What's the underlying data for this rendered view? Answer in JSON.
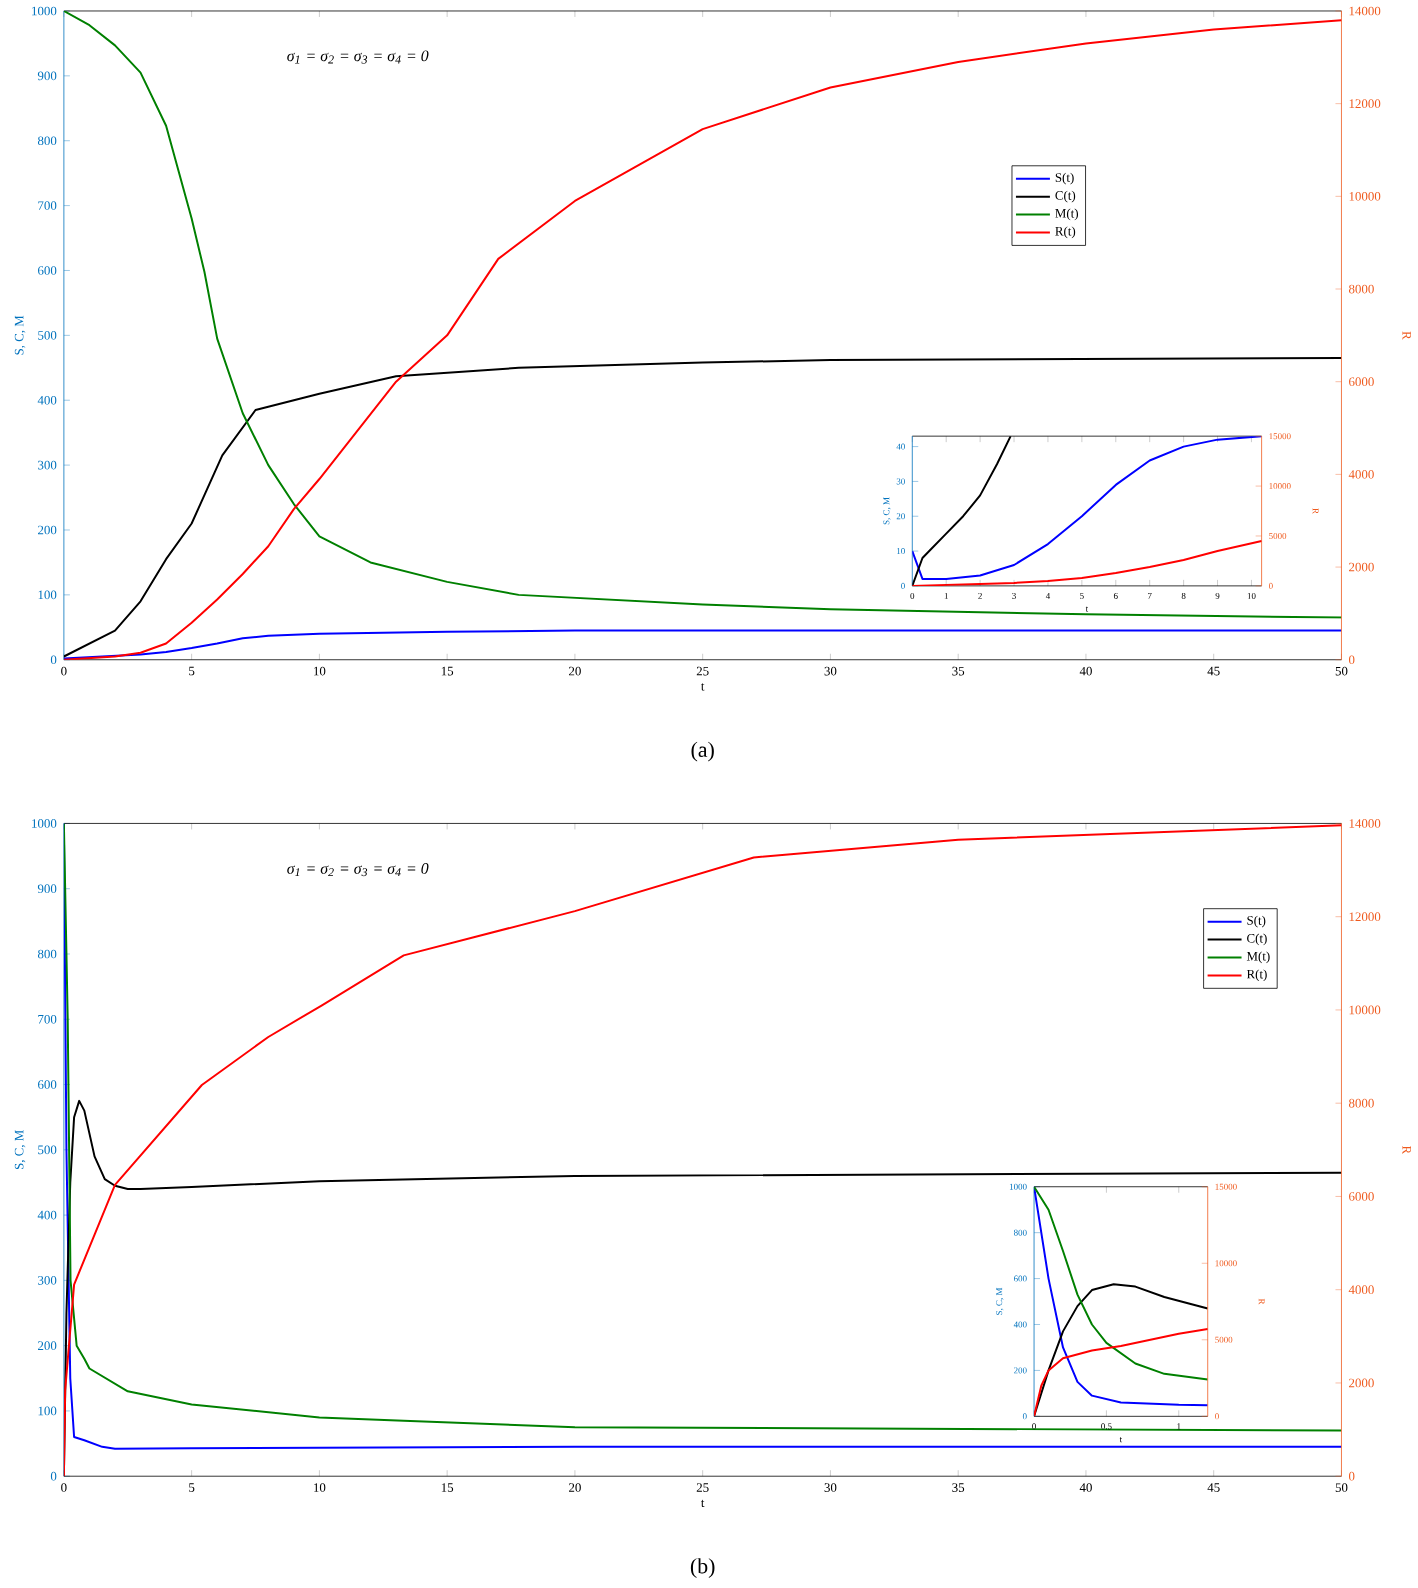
{
  "chart_data": [
    {
      "type": "line",
      "xlabel": "t",
      "ylabel": "S, C, M",
      "y2label": "R",
      "xlim": [
        0,
        50
      ],
      "xticks": [
        0,
        5,
        10,
        15,
        20,
        25,
        30,
        35,
        40,
        45,
        50
      ],
      "ylim": [
        0,
        1000
      ],
      "yticks": [
        0,
        100,
        200,
        300,
        400,
        500,
        600,
        700,
        800,
        900,
        1000
      ],
      "y2lim": [
        0,
        14000
      ],
      "y2ticks": [
        0,
        2000,
        4000,
        6000,
        8000,
        10000,
        12000,
        14000
      ],
      "legend": "right",
      "annotations": [
        "σ$_{1}$ = σ$_{2}$ = σ$_{3}$ =  σ$_{4}$ = 0",
        "(a)"
      ],
      "series": [
        {
          "name": "S(t)",
          "color": "#0000ff",
          "x": [
            0,
            3,
            4,
            5,
            6,
            7,
            8,
            10,
            15,
            20,
            30,
            50
          ],
          "values": [
            2,
            8,
            12,
            18,
            25,
            33,
            37,
            40,
            43,
            45,
            45,
            45
          ]
        },
        {
          "name": "C(t)",
          "color": "#000000",
          "x": [
            0,
            1,
            2,
            3,
            4,
            5,
            6.2,
            7.5,
            9,
            10,
            13,
            17.8,
            25,
            30,
            50
          ],
          "values": [
            5,
            25,
            45,
            90,
            155,
            210,
            315,
            385,
            400,
            410,
            437,
            450,
            458,
            462,
            465
          ]
        },
        {
          "name": "M(t)",
          "color": "#008000",
          "x": [
            0,
            1,
            2,
            3,
            4,
            5,
            5.5,
            6,
            7,
            8,
            9,
            10,
            12,
            15,
            17.8,
            25,
            30,
            40,
            50
          ],
          "values": [
            1000,
            978,
            947,
            905,
            823,
            680,
            598,
            495,
            380,
            300,
            240,
            190,
            150,
            120,
            100,
            85,
            78,
            70,
            65
          ]
        },
        {
          "name": "R(t)",
          "color": "#ff0000",
          "axis": "y2",
          "x": [
            0,
            2,
            3,
            4,
            5,
            6,
            7,
            8,
            9,
            10,
            11,
            12,
            13,
            15,
            17,
            20,
            25,
            30,
            35,
            40,
            45,
            50
          ],
          "values": [
            0,
            70,
            150,
            350,
            800,
            1300,
            1850,
            2450,
            3250,
            3900,
            4600,
            5300,
            6000,
            7000,
            8650,
            9900,
            11450,
            12350,
            12900,
            13300,
            13600,
            13800
          ]
        }
      ]
    },
    {
      "type": "line",
      "xlabel": "t",
      "ylabel": "S, C, M",
      "y2label": "R",
      "xlim": [
        0,
        10.3
      ],
      "xticks": [
        0,
        1,
        2,
        3,
        4,
        5,
        6,
        7,
        8,
        9,
        10
      ],
      "ylim": [
        0,
        43
      ],
      "yticks": [
        0,
        10,
        20,
        30,
        40
      ],
      "y2lim": [
        0,
        15000
      ],
      "y2ticks": [
        0,
        5000,
        10000,
        15000
      ],
      "series": [
        {
          "color": "#0000ff",
          "x": [
            0,
            0.3,
            1,
            2,
            3,
            4,
            5,
            6,
            7,
            8,
            9,
            10.3
          ],
          "values": [
            10,
            2,
            2,
            3,
            6,
            12,
            20,
            29,
            36,
            40,
            42,
            43
          ]
        },
        {
          "color": "#000000",
          "x": [
            0,
            0.3,
            0.5,
            1,
            1.5,
            2,
            2.5,
            2.9
          ],
          "values": [
            0,
            8,
            10,
            15,
            20,
            26,
            35,
            43
          ]
        },
        {
          "color": "#ff0000",
          "axis": "y2",
          "x": [
            0,
            1,
            2,
            3,
            4,
            5,
            6,
            7,
            8,
            9,
            10.3
          ],
          "values": [
            0,
            100,
            200,
            300,
            500,
            800,
            1300,
            1900,
            2600,
            3500,
            4500
          ]
        }
      ]
    },
    {
      "type": "line",
      "xlabel": "t",
      "ylabel": "S, C, M",
      "y2label": "R",
      "xlim": [
        0,
        50
      ],
      "xticks": [
        0,
        5,
        10,
        15,
        20,
        25,
        30,
        35,
        40,
        45,
        50
      ],
      "ylim": [
        0,
        1000
      ],
      "yticks": [
        0,
        100,
        200,
        300,
        400,
        500,
        600,
        700,
        800,
        900,
        1000
      ],
      "y2lim": [
        0,
        14000
      ],
      "y2ticks": [
        0,
        2000,
        4000,
        6000,
        8000,
        10000,
        12000,
        14000
      ],
      "legend": "top right",
      "annotations": [
        "σ$_{1}$ = σ$_{2}$ = σ$_{3}$ =  σ$_{4}$ = 0",
        "(b)"
      ],
      "series": [
        {
          "name": "S(t)",
          "color": "#0000ff",
          "x": [
            0,
            0.1,
            0.25,
            0.4,
            0.8,
            1.5,
            2,
            5,
            20,
            50
          ],
          "values": [
            1000,
            500,
            150,
            60,
            55,
            45,
            42,
            43,
            45,
            45
          ]
        },
        {
          "name": "C(t)",
          "color": "#000000",
          "x": [
            0,
            0.1,
            0.25,
            0.4,
            0.6,
            0.8,
            1.2,
            1.6,
            2,
            2.5,
            3,
            5,
            10,
            20,
            50
          ],
          "values": [
            0,
            250,
            450,
            550,
            575,
            560,
            490,
            455,
            445,
            440,
            440,
            443,
            452,
            460,
            465
          ]
        },
        {
          "name": "M(t)",
          "color": "#008000",
          "x": [
            0,
            0.15,
            0.26,
            0.5,
            0.8,
            1,
            2.5,
            5,
            10,
            13.3,
            20,
            50
          ],
          "values": [
            1000,
            700,
            300,
            200,
            180,
            165,
            130,
            110,
            90,
            85,
            75,
            70
          ]
        },
        {
          "name": "R(t)",
          "color": "#ff0000",
          "axis": "y2",
          "x": [
            0,
            0.05,
            0.4,
            2,
            5.4,
            8,
            10.1,
            13.3,
            20,
            27,
            35,
            50
          ],
          "values": [
            0,
            1840,
            4110,
            6250,
            8390,
            9420,
            10100,
            11170,
            12120,
            13270,
            13650,
            13960
          ]
        }
      ]
    },
    {
      "type": "line",
      "xlabel": "t",
      "ylabel": "S, C, M",
      "y2label": "R",
      "xlim": [
        0,
        1.2
      ],
      "xticks": [
        0,
        0.5,
        1
      ],
      "ylim": [
        0,
        1000
      ],
      "yticks": [
        0,
        200,
        400,
        600,
        800,
        1000
      ],
      "y2lim": [
        0,
        15000
      ],
      "y2ticks": [
        0,
        5000,
        10000,
        15000
      ],
      "series": [
        {
          "color": "#0000ff",
          "x": [
            0,
            0.1,
            0.2,
            0.3,
            0.4,
            0.6,
            1.0,
            1.2
          ],
          "values": [
            1000,
            600,
            300,
            150,
            90,
            60,
            50,
            48
          ]
        },
        {
          "color": "#000000",
          "x": [
            0,
            0.1,
            0.2,
            0.3,
            0.4,
            0.55,
            0.7,
            0.9,
            1.2
          ],
          "values": [
            0,
            200,
            370,
            480,
            550,
            575,
            565,
            520,
            470
          ]
        },
        {
          "color": "#008000",
          "x": [
            0,
            0.1,
            0.2,
            0.3,
            0.4,
            0.5,
            0.7,
            0.9,
            1.2
          ],
          "values": [
            1000,
            900,
            720,
            530,
            400,
            320,
            230,
            185,
            160
          ]
        },
        {
          "color": "#ff0000",
          "axis": "y2",
          "x": [
            0,
            0.05,
            0.1,
            0.2,
            0.4,
            0.6,
            0.8,
            1.0,
            1.2
          ],
          "values": [
            0,
            2000,
            3000,
            3800,
            4300,
            4600,
            5000,
            5400,
            5700
          ]
        }
      ]
    }
  ]
}
